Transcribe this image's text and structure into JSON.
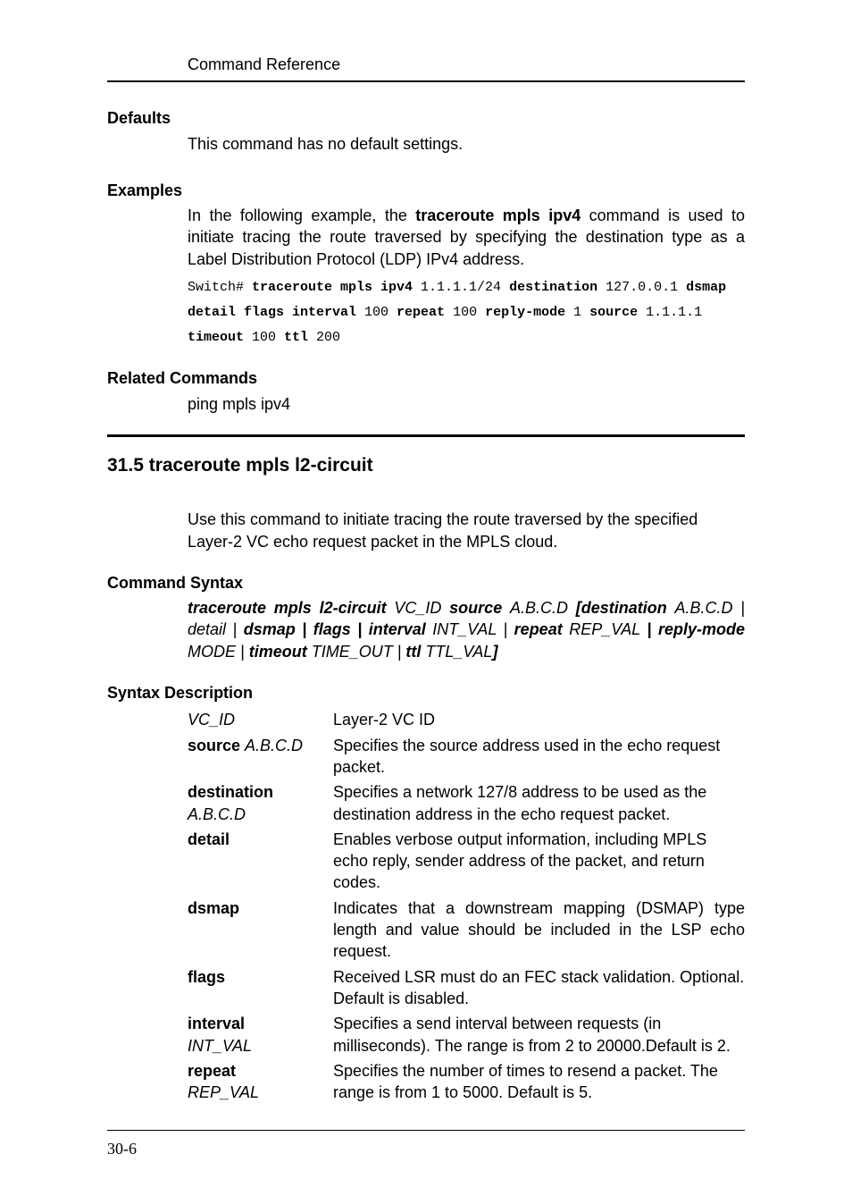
{
  "header": {
    "running_head": "Command Reference"
  },
  "sections": {
    "defaults": {
      "label": "Defaults",
      "text": "This command has no default settings."
    },
    "examples": {
      "label": "Examples",
      "intro_pre": "In the following example, the ",
      "intro_cmd": "traceroute mpls ipv4",
      "intro_post": " command is used to initiate tracing the route traversed by specifying the destination type as a Label Distribution Protocol (LDP) IPv4 address.",
      "code": {
        "p0": "Switch# ",
        "k0": "traceroute mpls ipv4",
        "p1": " 1.1.1.1/24 ",
        "k1": "destination",
        "p2": " 127.0.0.1 ",
        "k2": "dsmap detail flags interval",
        "p3": " 100 ",
        "k3": "repeat",
        "p4": " 100 ",
        "k4": "reply-mode",
        "p5": " 1 ",
        "k5": "source",
        "p6": " 1.1.1.1 ",
        "k6": "timeout",
        "p7": " 100 ",
        "k7": "ttl",
        "p8": " 200"
      }
    },
    "related": {
      "label": "Related Commands",
      "text": "ping mpls ipv4"
    },
    "title": "31.5 traceroute mpls l2-circuit",
    "usage": "Use this command to initiate tracing the route traversed by the specified Layer-2 VC echo request packet in the MPLS cloud.",
    "cmd_syntax": {
      "label": "Command Syntax",
      "s0": "traceroute mpls l2-circuit ",
      "s1": "VC_ID ",
      "s2": "source ",
      "s3": "A.B.C.D ",
      "s4": "[destination ",
      "s5": "A.B.C.D ",
      "s6": "| detail ",
      "s7": "| ",
      "s8": "dsmap | flags | interval ",
      "s9": "INT_VAL ",
      "s10": "| ",
      "s11": "repeat ",
      "s12": "REP_VAL ",
      "s13": "| reply-mode ",
      "s14": "MODE ",
      "s15": "| ",
      "s16": "timeout ",
      "s17": "TIME_OUT ",
      "s18": "| ",
      "s19": "ttl ",
      "s20": "TTL_VAL",
      "s21": "]"
    },
    "syntax_desc": {
      "label": "Syntax Description",
      "rows": [
        {
          "term_i": "VC_ID",
          "def": "Layer-2 VC ID",
          "justify": false
        },
        {
          "term_b": "source ",
          "term_i": "A.B.C.D",
          "def": "Specifies the source address used in the echo request packet.",
          "justify": false
        },
        {
          "term_b": "destination",
          "term_i": "A.B.C.D",
          "multiline_term": true,
          "def": "Specifies a network 127/8 address to be used as the destination address in the echo request packet.",
          "justify": false
        },
        {
          "term_b": "detail",
          "def": "Enables verbose output information, including MPLS echo reply, sender address of the packet, and return codes.",
          "justify": false
        },
        {
          "term_b": "dsmap",
          "def": "Indicates that a downstream mapping (DSMAP) type length and value should be included in the LSP echo request.",
          "justify": true
        },
        {
          "term_b": "flags",
          "def": "Received LSR must do an FEC stack validation. Optional. Default is disabled.",
          "justify": false
        },
        {
          "term_b": "interval",
          "term_i": "INT_VAL",
          "multiline_term": true,
          "def": "Specifies a send interval between requests (in milliseconds). The range is from 2 to 20000.Default is 2.",
          "justify": false
        },
        {
          "term_b": "repeat",
          "term_i": "REP_VAL",
          "multiline_term": true,
          "def": "Specifies the number of times to resend a packet. The range is from 1 to 5000. Default is 5.",
          "justify": false
        }
      ]
    }
  },
  "footer": {
    "page": "30-6"
  }
}
